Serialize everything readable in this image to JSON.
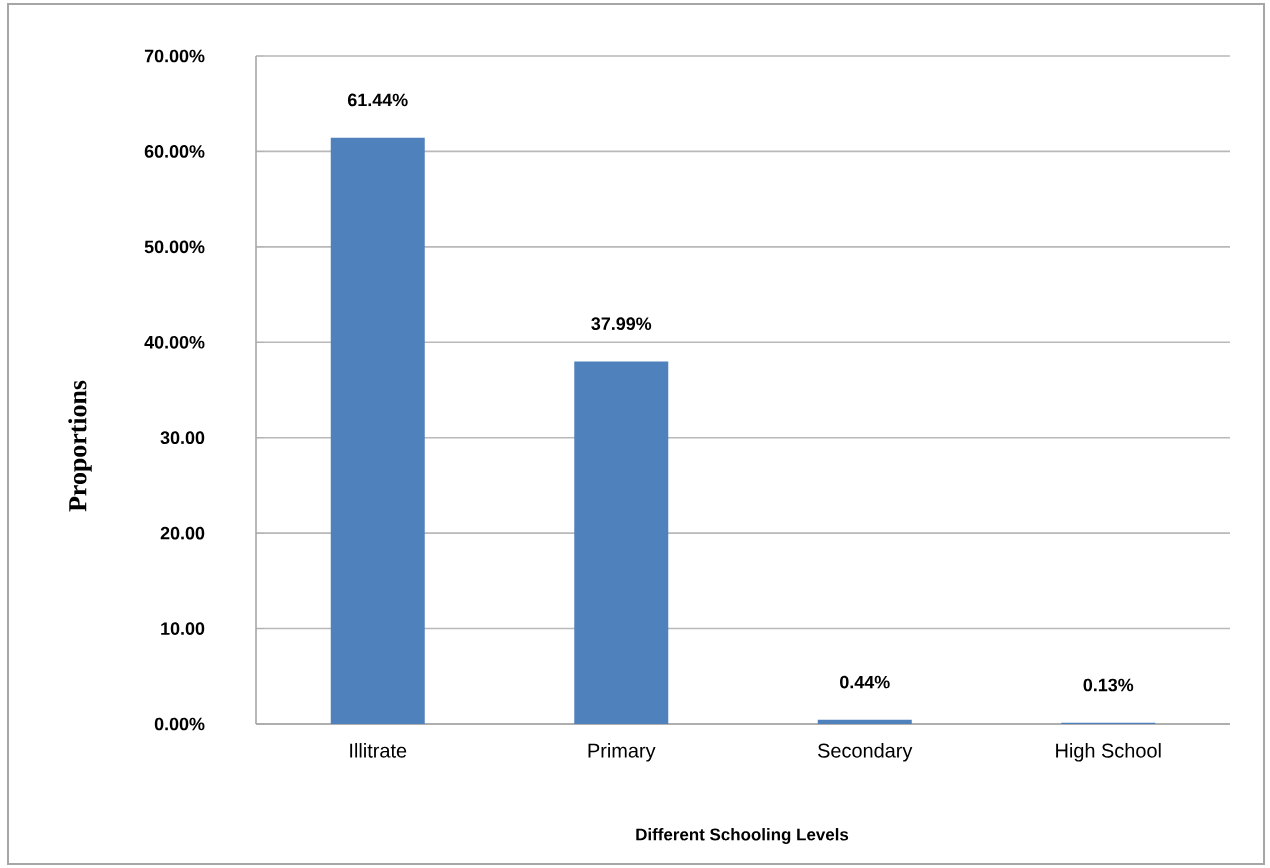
{
  "chart_data": {
    "type": "bar",
    "categories": [
      "Illitrate",
      "Primary",
      "Secondary",
      "High School"
    ],
    "values": [
      61.44,
      37.99,
      0.44,
      0.13
    ],
    "value_labels": [
      "61.44%",
      "37.99%",
      "0.44%",
      "0.13%"
    ],
    "color": "#4f81bd",
    "xlabel": "Different Schooling Levels",
    "ylabel": "Proportions",
    "ylim": [
      0,
      70
    ],
    "yticks": [
      {
        "value": 0,
        "label": "0.00%"
      },
      {
        "value": 10,
        "label": "10.00"
      },
      {
        "value": 20,
        "label": "20.00"
      },
      {
        "value": 30,
        "label": "30.00"
      },
      {
        "value": 40,
        "label": "40.00%"
      },
      {
        "value": 50,
        "label": "50.00%"
      },
      {
        "value": 60,
        "label": "60.00%"
      },
      {
        "value": 70,
        "label": "70.00%"
      }
    ],
    "grid": "y"
  }
}
